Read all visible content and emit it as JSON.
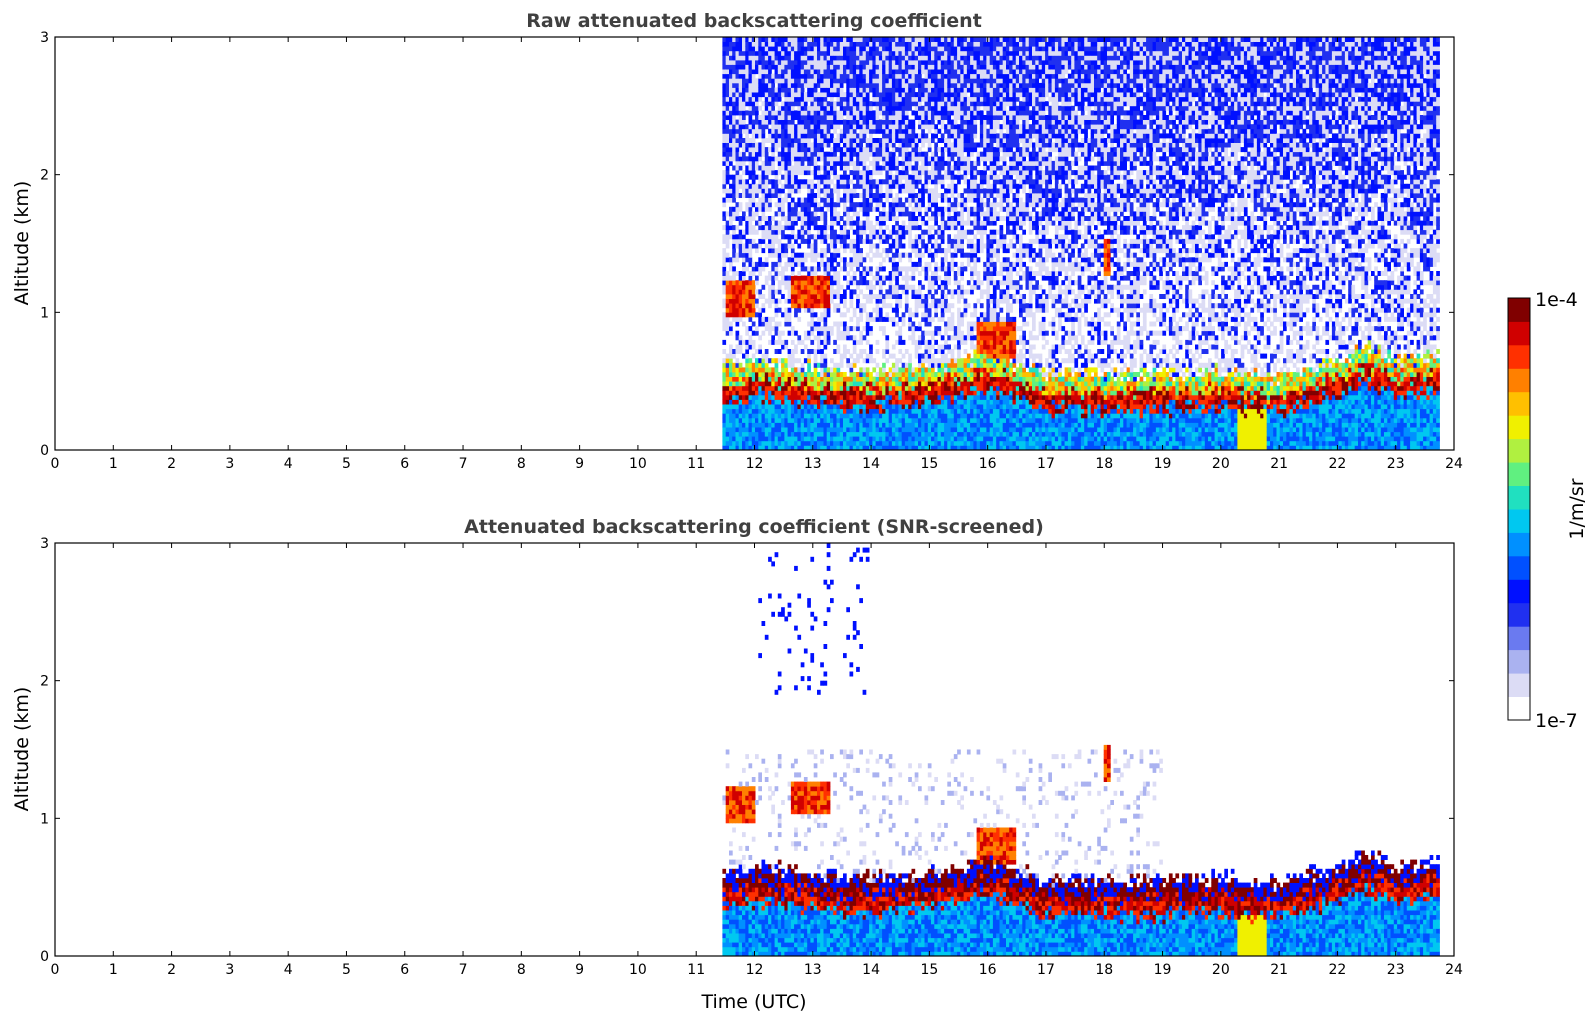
{
  "colormap": [
    "#ffffff",
    "#dcdcf5",
    "#aab2f0",
    "#6a7af0",
    "#2030f0",
    "#0010ff",
    "#0050ff",
    "#0090ff",
    "#00c8f0",
    "#20e0c0",
    "#60f080",
    "#b0f040",
    "#f0f000",
    "#ffc000",
    "#ff8000",
    "#ff3000",
    "#d00000",
    "#800000"
  ],
  "colorbar": {
    "min_label": "1e-7",
    "max_label": "1e-4",
    "unit_label": "1/m/sr"
  },
  "chart_data": [
    {
      "type": "heatmap",
      "title": "Raw attenuated backscattering coefficient",
      "xlabel": "",
      "ylabel": "Altitude (km)",
      "xlim": [
        0,
        24
      ],
      "ylim": [
        0,
        3
      ],
      "x_ticks": [
        "0",
        "1",
        "2",
        "3",
        "4",
        "5",
        "6",
        "7",
        "8",
        "9",
        "10",
        "11",
        "12",
        "13",
        "14",
        "15",
        "16",
        "17",
        "18",
        "19",
        "20",
        "21",
        "22",
        "23",
        "24"
      ],
      "y_ticks": [
        "0",
        "1",
        "2",
        "3"
      ],
      "data_time_range": [
        11.45,
        23.75
      ],
      "boundary_layer_top_km": [
        [
          11.5,
          0.45
        ],
        [
          12,
          0.5
        ],
        [
          13,
          0.45
        ],
        [
          14,
          0.42
        ],
        [
          15,
          0.45
        ],
        [
          16,
          0.55
        ],
        [
          17,
          0.4
        ],
        [
          18,
          0.4
        ],
        [
          19,
          0.4
        ],
        [
          20,
          0.42
        ],
        [
          21,
          0.38
        ],
        [
          22,
          0.5
        ],
        [
          22.5,
          0.6
        ],
        [
          23,
          0.5
        ],
        [
          23.75,
          0.55
        ]
      ],
      "cloud_features": [
        {
          "t_start": 11.5,
          "t_end": 12.0,
          "alt_km": 1.1
        },
        {
          "t_start": 12.6,
          "t_end": 13.3,
          "alt_km": 1.15
        },
        {
          "t_start": 15.8,
          "t_end": 16.5,
          "alt_km": 0.8
        },
        {
          "t_start": 18.0,
          "t_end": 18.1,
          "alt_km": 1.4
        }
      ]
    },
    {
      "type": "heatmap",
      "title": "Attenuated backscattering coefficient (SNR-screened)",
      "xlabel": "Time (UTC)",
      "ylabel": "Altitude (km)",
      "xlim": [
        0,
        24
      ],
      "ylim": [
        0,
        3
      ],
      "x_ticks": [
        "0",
        "1",
        "2",
        "3",
        "4",
        "5",
        "6",
        "7",
        "8",
        "9",
        "10",
        "11",
        "12",
        "13",
        "14",
        "15",
        "16",
        "17",
        "18",
        "19",
        "20",
        "21",
        "22",
        "23",
        "24"
      ],
      "y_ticks": [
        "0",
        "1",
        "2",
        "3"
      ],
      "data_time_range": [
        11.45,
        23.75
      ]
    }
  ]
}
